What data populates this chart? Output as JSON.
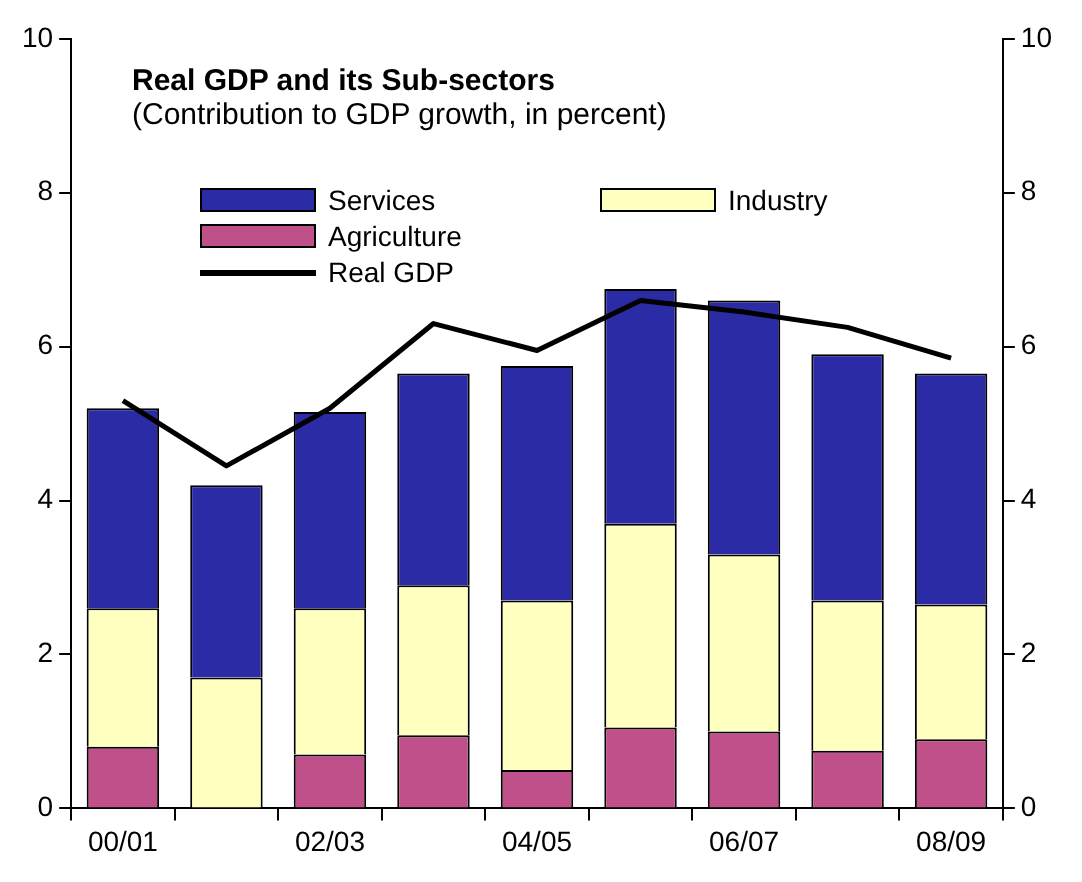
{
  "chart_data": {
    "type": "bar",
    "stacked": true,
    "title": "Real GDP and its Sub-sectors",
    "subtitle": "(Contribution to GDP growth, in percent)",
    "categories": [
      "00/01",
      null,
      "02/03",
      null,
      "04/05",
      null,
      "06/07",
      null,
      "08/09"
    ],
    "series": [
      {
        "name": "Agriculture",
        "color": "#c0508a",
        "values": [
          0.8,
          0,
          0.7,
          0.95,
          0.5,
          1.05,
          1.0,
          0.75,
          0.9
        ]
      },
      {
        "name": "Industry",
        "color": "#ffffc0",
        "values": [
          1.8,
          1.7,
          1.9,
          1.95,
          2.2,
          2.65,
          2.3,
          1.95,
          1.75
        ]
      },
      {
        "name": "Services",
        "color": "#2b2ba6",
        "values": [
          2.6,
          2.5,
          2.55,
          2.75,
          3.05,
          3.05,
          3.3,
          3.2,
          3.0
        ]
      },
      {
        "name": "Real GDP",
        "type": "line",
        "color": "#000000",
        "marker": "none",
        "values": [
          5.3,
          4.45,
          5.2,
          6.3,
          5.95,
          6.6,
          6.45,
          6.25,
          5.85
        ]
      }
    ],
    "ylim": [
      0,
      10
    ],
    "yticks": [
      0,
      2,
      4,
      6,
      8,
      10
    ],
    "y2lim": [
      0,
      10
    ],
    "y2ticks": [
      0,
      2,
      4,
      6,
      8,
      10
    ],
    "grid": false,
    "legend": "top left"
  }
}
